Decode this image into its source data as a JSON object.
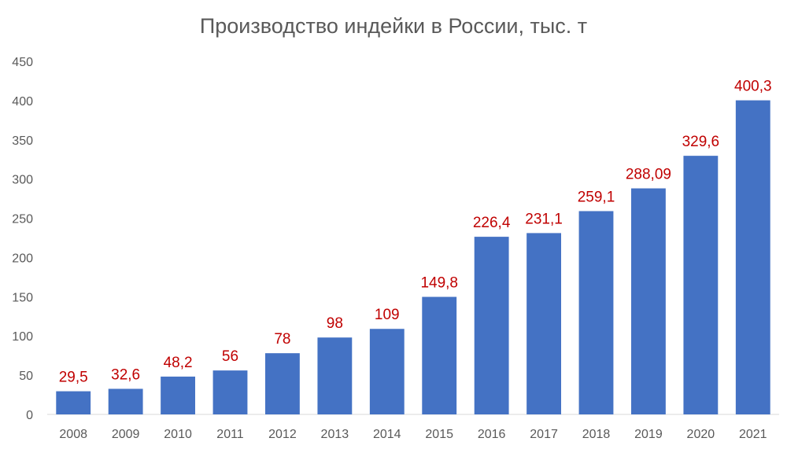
{
  "chart_data": {
    "type": "bar",
    "title": "Производство индейки в России, тыс. т",
    "xlabel": "",
    "ylabel": "",
    "categories": [
      "2008",
      "2009",
      "2010",
      "2011",
      "2012",
      "2013",
      "2014",
      "2015",
      "2016",
      "2017",
      "2018",
      "2019",
      "2020",
      "2021"
    ],
    "values": [
      29.5,
      32.6,
      48.2,
      56,
      78,
      98,
      109,
      149.8,
      226.4,
      231.1,
      259.1,
      288.09,
      329.6,
      400.3
    ],
    "data_labels": [
      "29,5",
      "32,6",
      "48,2",
      "56",
      "78",
      "98",
      "109",
      "149,8",
      "226,4",
      "231,1",
      "259,1",
      "288,09",
      "329,6",
      "400,3"
    ],
    "ylim": [
      0,
      450
    ],
    "yticks": [
      0,
      50,
      100,
      150,
      200,
      250,
      300,
      350,
      400,
      450
    ],
    "grid": false,
    "legend": "none",
    "colors": {
      "bar": "#4472C4",
      "data_label": "#C00000",
      "axis_text": "#595959",
      "axis_line": "#D9D9D9"
    }
  }
}
